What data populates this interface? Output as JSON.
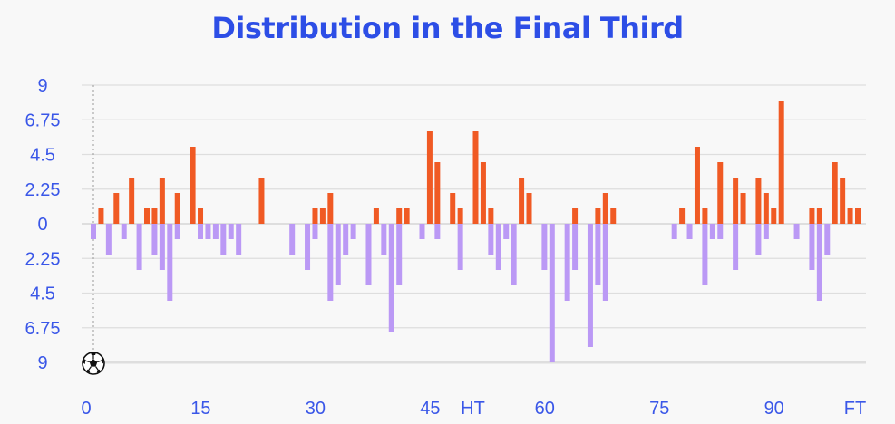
{
  "chart_data": {
    "type": "bar",
    "title": "Distribution in the Final Third",
    "xlabel": "",
    "ylabel": "",
    "xlim": [
      0,
      101
    ],
    "ylim": [
      -9,
      9
    ],
    "y_ticks": [
      {
        "value": 9,
        "label": "9"
      },
      {
        "value": 6.75,
        "label": "6.75"
      },
      {
        "value": 4.5,
        "label": "4.5"
      },
      {
        "value": 2.25,
        "label": "2.25"
      },
      {
        "value": 0,
        "label": "0"
      },
      {
        "value": -2.25,
        "label": "2.25"
      },
      {
        "value": -4.5,
        "label": "4.5"
      },
      {
        "value": -6.75,
        "label": "6.75"
      },
      {
        "value": -9,
        "label": "9"
      }
    ],
    "x_ticks": [
      {
        "value": 0,
        "label": "0"
      },
      {
        "value": 15,
        "label": "15"
      },
      {
        "value": 30,
        "label": "30"
      },
      {
        "value": 45,
        "label": "45"
      },
      {
        "value": 60,
        "label": "60"
      },
      {
        "value": 75,
        "label": "75"
      },
      {
        "value": 90,
        "label": "90"
      }
    ],
    "period_labels": [
      {
        "value": 50,
        "label": "HT"
      },
      {
        "value": 100,
        "label": "FT"
      }
    ],
    "grid": true,
    "marker_icon": "soccer-ball-icon",
    "series": [
      {
        "color": "#f05a24",
        "x": [
          1,
          3,
          5,
          7,
          8,
          9,
          11,
          13,
          14,
          22,
          29,
          30,
          31,
          37,
          40,
          41,
          44,
          45,
          47,
          48,
          50,
          51,
          52,
          56,
          57,
          63,
          66,
          67,
          68,
          77,
          79,
          80,
          82,
          84,
          85,
          87,
          88,
          89,
          90,
          94,
          95,
          97,
          98,
          99,
          100
        ],
        "values": [
          1,
          2,
          3,
          1,
          1,
          3,
          2,
          5,
          1,
          3,
          1,
          1,
          2,
          1,
          1,
          1,
          6,
          4,
          2,
          1,
          6,
          4,
          1,
          3,
          2,
          1,
          1,
          2,
          1,
          1,
          5,
          1,
          4,
          3,
          2,
          3,
          2,
          1,
          8,
          1,
          1,
          4,
          3,
          1,
          1
        ]
      },
      {
        "color": "#bb99f5",
        "x": [
          0,
          2,
          4,
          6,
          8,
          9,
          10,
          11,
          14,
          15,
          16,
          17,
          18,
          19,
          26,
          28,
          29,
          31,
          32,
          33,
          34,
          36,
          38,
          39,
          40,
          43,
          45,
          48,
          52,
          53,
          54,
          55,
          59,
          60,
          62,
          63,
          65,
          66,
          67,
          76,
          78,
          80,
          81,
          82,
          84,
          87,
          88,
          92,
          94,
          95,
          96
        ],
        "values": [
          -1,
          -2,
          -1,
          -3,
          -2,
          -3,
          -5,
          -1,
          -1,
          -1,
          -1,
          -2,
          -1,
          -2,
          -2,
          -3,
          -1,
          -5,
          -4,
          -2,
          -1,
          -4,
          -2,
          -7,
          -4,
          -1,
          -1,
          -3,
          -2,
          -3,
          -1,
          -4,
          -3,
          -9,
          -5,
          -3,
          -8,
          -4,
          -5,
          -1,
          -1,
          -4,
          -1,
          -1,
          -3,
          -2,
          -1,
          -1,
          -3,
          -5,
          -2
        ]
      }
    ]
  },
  "colors": {
    "title": "#2d4ee6",
    "axis_text": "#3a57e8",
    "grid": "#dedede",
    "zero_line": "#cfcfcf",
    "start_line": "#9a9a9a"
  }
}
